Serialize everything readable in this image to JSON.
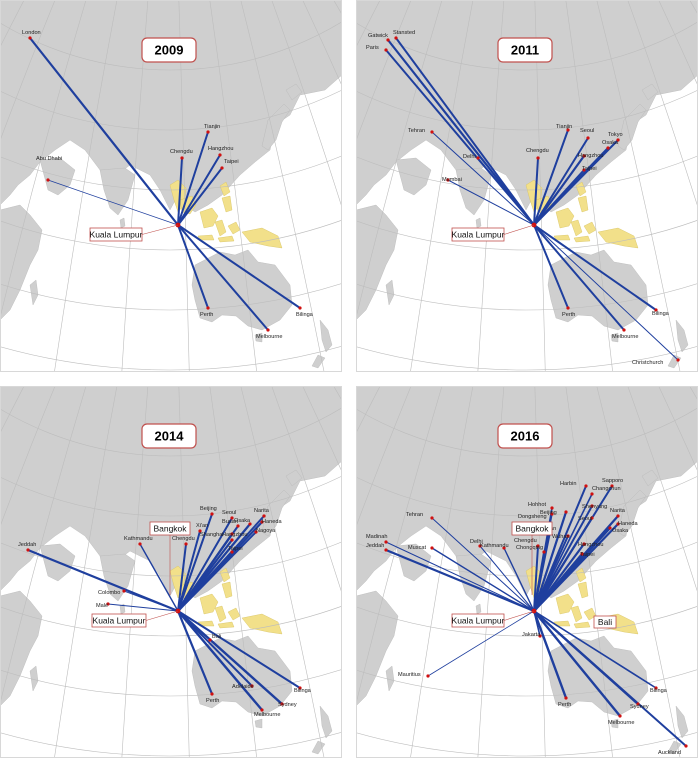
{
  "colors": {
    "land": "#cfcfcf",
    "highlight": "#f2e08a",
    "route": "#1f3f9e",
    "dot": "#d01010",
    "grid": "#bdbdbd"
  },
  "panels": [
    {
      "year": "2009",
      "hub": "Kuala Lumpur",
      "cities": [
        "London",
        "Abu Dhabi",
        "Chengdu",
        "Tianjin",
        "Hangzhou",
        "Taipei",
        "Perth",
        "Melbourne",
        "Bilinga"
      ]
    },
    {
      "year": "2011",
      "hub": "Kuala Lumpur",
      "cities": [
        "Gatwick",
        "Stansted",
        "Paris",
        "Tehran",
        "Delhi",
        "Mumbai",
        "Chengdu",
        "Tianjin",
        "Seoul",
        "Osaka",
        "Tokyo",
        "Hangzhou",
        "Taipei",
        "Perth",
        "Bilinga",
        "Melbourne",
        "Christchurch"
      ]
    },
    {
      "year": "2014",
      "hub": "Kuala Lumpur",
      "hub2": "Bangkok",
      "cities": [
        "Jeddah",
        "Kathmandu",
        "Colombo",
        "Malé",
        "Chengdu",
        "Beijing",
        "Xi'an",
        "Seoul",
        "Busan",
        "Osaka",
        "Narita",
        "Haneda",
        "Nagoya",
        "Shanghai",
        "Hangzhou",
        "Taipei",
        "Bali",
        "Perth",
        "Adelaide",
        "Melbourne",
        "Sydney",
        "Bilinga"
      ]
    },
    {
      "year": "2016",
      "hub": "Kuala Lumpur",
      "hub2": "Bangkok",
      "hub3": "Bali",
      "cities": [
        "Madinah",
        "Jeddah",
        "Tehran",
        "Muscat",
        "Delhi",
        "Kathmandu",
        "Chongqing",
        "Chengdu",
        "Harbin",
        "Hohhot",
        "Beijing",
        "Dongsheng",
        "Seoul",
        "Changchun",
        "Sapporo",
        "Shenyang",
        "Xi'an",
        "Wuhan",
        "Narita",
        "Haneda",
        "Osaka",
        "Hangzhou",
        "Taipei",
        "Jakarta",
        "Mauritius",
        "Perth",
        "Melbourne",
        "Sydney",
        "Bilinga",
        "Auckland"
      ]
    }
  ]
}
